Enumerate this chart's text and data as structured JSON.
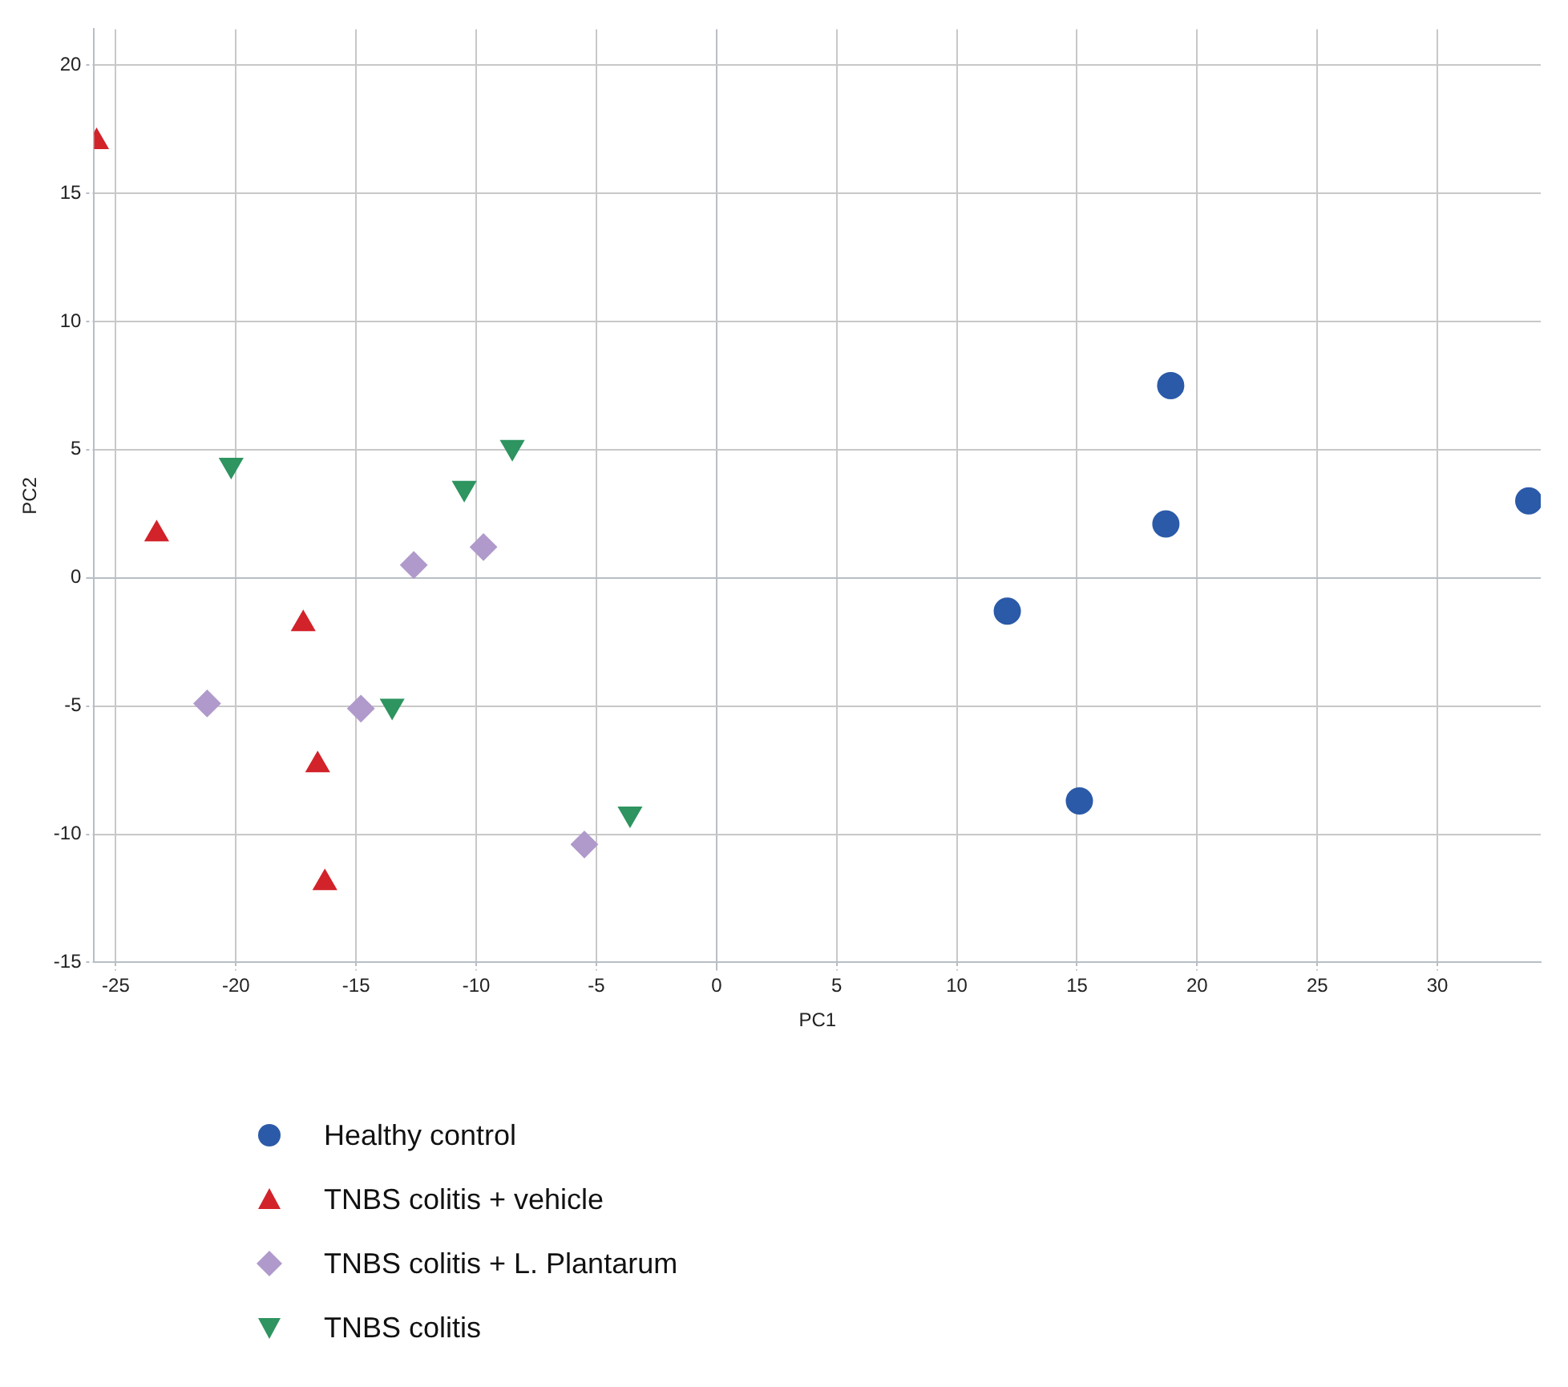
{
  "chart_data": {
    "type": "scatter",
    "xlabel": "PC1",
    "ylabel": "PC2",
    "xlim": [
      -25.9,
      34.3
    ],
    "ylim": [
      -15,
      21.4
    ],
    "xticks": [
      -25,
      -20,
      -15,
      -10,
      -5,
      0,
      5,
      10,
      15,
      20,
      25,
      30
    ],
    "yticks": [
      -15,
      -10,
      -5,
      0,
      5,
      10,
      15,
      20
    ],
    "grid": true,
    "legend": "bottom",
    "series": [
      {
        "name": "Healthy control",
        "color": "#2b5aa8",
        "marker": "circle",
        "x": [
          18.9,
          18.7,
          12.1,
          15.1,
          33.8
        ],
        "values": [
          7.5,
          2.1,
          -1.3,
          -8.7,
          3.0
        ]
      },
      {
        "name": "TNBS colitis + vehicle",
        "color": "#d2232a",
        "marker": "triangle",
        "x": [
          -25.8,
          -23.3,
          -17.2,
          -16.6,
          -16.3
        ],
        "values": [
          17.0,
          1.7,
          -1.8,
          -7.3,
          -11.9
        ]
      },
      {
        "name": "TNBS colitis + L. Plantarum",
        "color": "#b09acb",
        "marker": "diamond",
        "x": [
          -21.2,
          -14.8,
          -12.6,
          -9.7,
          -5.5
        ],
        "values": [
          -4.9,
          -5.1,
          0.5,
          1.2,
          -10.4
        ]
      },
      {
        "name": "TNBS colitis",
        "color": "#2e9460",
        "marker": "triangle-down",
        "x": [
          -20.2,
          -10.5,
          -8.5,
          -13.5,
          -3.6
        ],
        "values": [
          4.4,
          3.5,
          5.1,
          -5.0,
          -9.2
        ]
      }
    ]
  }
}
